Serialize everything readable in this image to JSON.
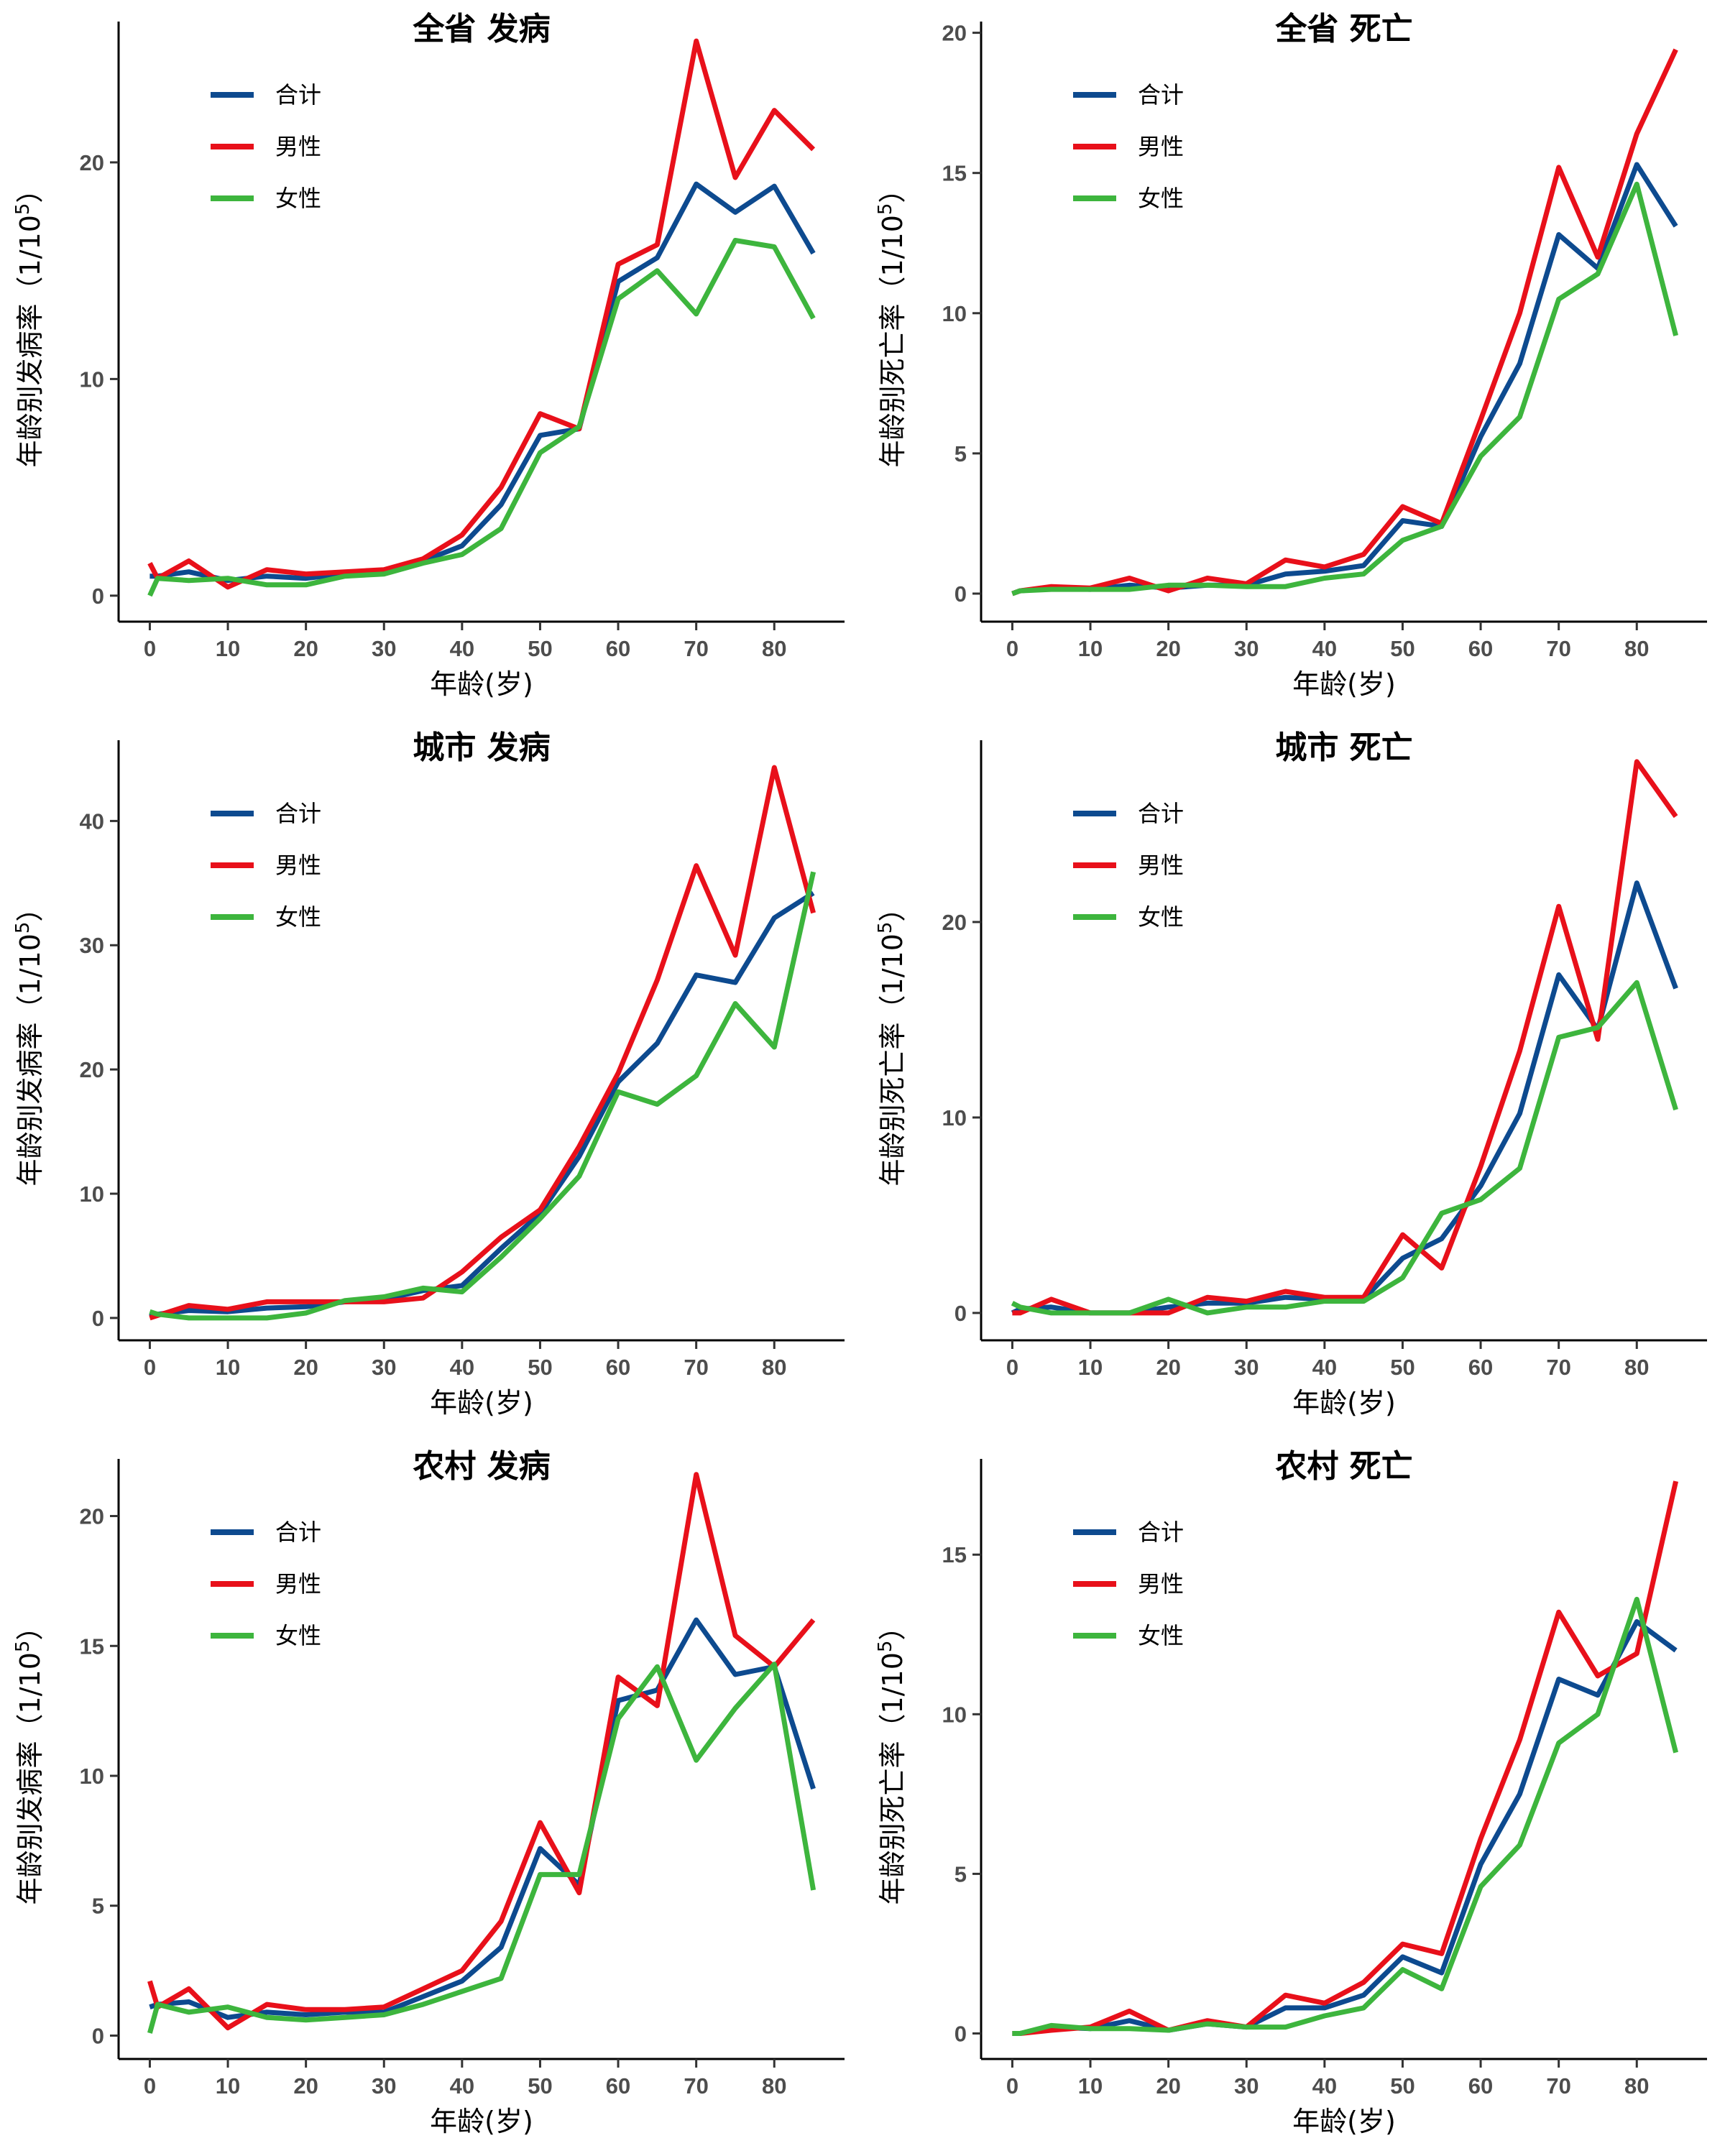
{
  "legend": [
    {
      "key": "total",
      "label": "合计",
      "color": "#0d4a8f"
    },
    {
      "key": "male",
      "label": "男性",
      "color": "#e8101a"
    },
    {
      "key": "female",
      "label": "女性",
      "color": "#3db53d"
    }
  ],
  "chart_data": [
    {
      "type": "line",
      "title": "全省 发病",
      "xlabel": "年龄(岁)",
      "ylabel": "年龄别发病率（1/10",
      "ylabel_sup": "5",
      "ylabel_close": "）",
      "xlim": [
        -4,
        89
      ],
      "ylim": [
        -1.2,
        26.5
      ],
      "xticks": [
        0,
        10,
        20,
        30,
        40,
        50,
        60,
        70,
        80
      ],
      "yticks": [
        0,
        10,
        20
      ],
      "x": [
        0,
        1,
        5,
        10,
        15,
        20,
        25,
        30,
        35,
        40,
        45,
        50,
        55,
        60,
        65,
        70,
        75,
        80,
        85
      ],
      "series": [
        {
          "name": "合计",
          "key": "total",
          "values": [
            0.9,
            0.9,
            1.1,
            0.7,
            0.9,
            0.8,
            1.0,
            1.1,
            1.6,
            2.3,
            4.2,
            7.4,
            7.7,
            14.5,
            15.6,
            19.0,
            17.7,
            18.9,
            15.8
          ]
        },
        {
          "name": "男性",
          "key": "male",
          "values": [
            1.5,
            0.8,
            1.6,
            0.4,
            1.2,
            1.0,
            1.1,
            1.2,
            1.7,
            2.8,
            5.0,
            8.4,
            7.7,
            15.3,
            16.2,
            25.6,
            19.3,
            22.4,
            20.6
          ]
        },
        {
          "name": "女性",
          "key": "female",
          "values": [
            0.0,
            0.8,
            0.7,
            0.8,
            0.5,
            0.5,
            0.9,
            1.0,
            1.5,
            1.9,
            3.1,
            6.6,
            7.8,
            13.7,
            15.0,
            13.0,
            16.4,
            16.1,
            12.8
          ]
        }
      ]
    },
    {
      "type": "line",
      "title": "全省 死亡",
      "xlabel": "年龄(岁)",
      "ylabel": "年龄别死亡率（1/10",
      "ylabel_sup": "5",
      "ylabel_close": "）",
      "xlim": [
        -4,
        89
      ],
      "ylim": [
        -1.0,
        20.4
      ],
      "xticks": [
        0,
        10,
        20,
        30,
        40,
        50,
        60,
        70,
        80
      ],
      "yticks": [
        0,
        5,
        10,
        15,
        20
      ],
      "x": [
        0,
        1,
        5,
        10,
        15,
        20,
        25,
        30,
        35,
        40,
        45,
        50,
        55,
        60,
        65,
        70,
        75,
        80,
        85
      ],
      "series": [
        {
          "name": "合计",
          "key": "total",
          "values": [
            0.0,
            0.1,
            0.2,
            0.15,
            0.3,
            0.2,
            0.3,
            0.3,
            0.7,
            0.8,
            1.0,
            2.6,
            2.4,
            5.6,
            8.2,
            12.8,
            11.6,
            15.3,
            13.1
          ]
        },
        {
          "name": "男性",
          "key": "male",
          "values": [
            0.0,
            0.1,
            0.25,
            0.2,
            0.55,
            0.1,
            0.55,
            0.35,
            1.2,
            0.95,
            1.4,
            3.1,
            2.5,
            6.2,
            10.0,
            15.2,
            12.0,
            16.4,
            19.4
          ]
        },
        {
          "name": "女性",
          "key": "female",
          "values": [
            0.0,
            0.1,
            0.15,
            0.15,
            0.15,
            0.3,
            0.3,
            0.25,
            0.25,
            0.55,
            0.7,
            1.9,
            2.4,
            4.9,
            6.3,
            10.5,
            11.4,
            14.6,
            9.2
          ]
        }
      ]
    },
    {
      "type": "line",
      "title": "城市 发病",
      "xlabel": "年龄(岁)",
      "ylabel": "年龄别发病率（1/10",
      "ylabel_sup": "5",
      "ylabel_close": "）",
      "xlim": [
        -4,
        89
      ],
      "ylim": [
        -1.8,
        46.5
      ],
      "xticks": [
        0,
        10,
        20,
        30,
        40,
        50,
        60,
        70,
        80
      ],
      "yticks": [
        0,
        10,
        20,
        30,
        40
      ],
      "x": [
        0,
        1,
        5,
        10,
        15,
        20,
        25,
        30,
        35,
        40,
        45,
        50,
        55,
        60,
        65,
        70,
        75,
        80,
        85
      ],
      "series": [
        {
          "name": "合计",
          "key": "total",
          "values": [
            0.1,
            0.3,
            0.6,
            0.5,
            0.8,
            0.9,
            1.3,
            1.5,
            2.2,
            2.6,
            5.6,
            8.4,
            13.0,
            19.0,
            22.1,
            27.6,
            27.0,
            32.2,
            34.2
          ]
        },
        {
          "name": "男性",
          "key": "male",
          "values": [
            0.0,
            0.2,
            1.0,
            0.7,
            1.3,
            1.3,
            1.3,
            1.3,
            1.6,
            3.7,
            6.5,
            8.7,
            13.8,
            19.7,
            27.2,
            36.4,
            29.2,
            44.3,
            32.6
          ]
        },
        {
          "name": "女性",
          "key": "female",
          "values": [
            0.5,
            0.3,
            0.0,
            0.0,
            0.0,
            0.4,
            1.4,
            1.7,
            2.4,
            2.1,
            4.9,
            8.0,
            11.4,
            18.2,
            17.2,
            19.5,
            25.3,
            21.8,
            35.9
          ]
        }
      ]
    },
    {
      "type": "line",
      "title": "城市 死亡",
      "xlabel": "年龄(岁)",
      "ylabel": "年龄别死亡率（1/10",
      "ylabel_sup": "5",
      "ylabel_close": "）",
      "xlim": [
        -4,
        89
      ],
      "ylim": [
        -1.4,
        29.3
      ],
      "xticks": [
        0,
        10,
        20,
        30,
        40,
        50,
        60,
        70,
        80
      ],
      "yticks": [
        0,
        10,
        20
      ],
      "x": [
        0,
        1,
        5,
        10,
        15,
        20,
        25,
        30,
        35,
        40,
        45,
        50,
        55,
        60,
        65,
        70,
        75,
        80,
        85
      ],
      "series": [
        {
          "name": "合计",
          "key": "total",
          "values": [
            0.0,
            0.2,
            0.3,
            0.0,
            0.0,
            0.3,
            0.5,
            0.5,
            0.8,
            0.7,
            0.7,
            2.8,
            3.8,
            6.5,
            10.2,
            17.3,
            14.5,
            22.0,
            16.6
          ]
        },
        {
          "name": "男性",
          "key": "male",
          "values": [
            0.0,
            0.0,
            0.7,
            0.0,
            0.0,
            0.0,
            0.8,
            0.6,
            1.1,
            0.8,
            0.8,
            4.0,
            2.3,
            7.5,
            13.4,
            20.8,
            14.0,
            28.2,
            25.4
          ]
        },
        {
          "name": "女性",
          "key": "female",
          "values": [
            0.5,
            0.3,
            0.0,
            0.0,
            0.0,
            0.7,
            0.0,
            0.3,
            0.3,
            0.6,
            0.6,
            1.8,
            5.1,
            5.8,
            7.4,
            14.1,
            14.6,
            16.9,
            10.4
          ]
        }
      ]
    },
    {
      "type": "line",
      "title": "农村 发病",
      "xlabel": "年龄(岁)",
      "ylabel": "年龄别发病率（1/10",
      "ylabel_sup": "5",
      "ylabel_close": "）",
      "xlim": [
        -4,
        89
      ],
      "ylim": [
        -0.9,
        22.2
      ],
      "xticks": [
        0,
        10,
        20,
        30,
        40,
        50,
        60,
        70,
        80
      ],
      "yticks": [
        0,
        5,
        10,
        15,
        20
      ],
      "x": [
        0,
        1,
        5,
        10,
        15,
        20,
        25,
        30,
        35,
        40,
        45,
        50,
        55,
        60,
        65,
        70,
        75,
        80,
        85
      ],
      "series": [
        {
          "name": "合计",
          "key": "total",
          "values": [
            1.1,
            1.2,
            1.3,
            0.7,
            0.9,
            0.8,
            0.9,
            0.9,
            1.5,
            2.1,
            3.4,
            7.2,
            5.8,
            12.9,
            13.3,
            16.0,
            13.9,
            14.2,
            9.5
          ]
        },
        {
          "name": "男性",
          "key": "male",
          "values": [
            2.1,
            1.1,
            1.8,
            0.3,
            1.2,
            1.0,
            1.0,
            1.1,
            1.8,
            2.5,
            4.4,
            8.2,
            5.5,
            13.8,
            12.7,
            21.6,
            15.4,
            14.2,
            16.0
          ]
        },
        {
          "name": "女性",
          "key": "female",
          "values": [
            0.1,
            1.2,
            0.9,
            1.1,
            0.7,
            0.6,
            0.7,
            0.8,
            1.2,
            1.7,
            2.2,
            6.2,
            6.2,
            12.2,
            14.2,
            10.6,
            12.6,
            14.3,
            5.6
          ]
        }
      ]
    },
    {
      "type": "line",
      "title": "农村 死亡",
      "xlabel": "年龄(岁)",
      "ylabel": "年龄别死亡率（1/10",
      "ylabel_sup": "5",
      "ylabel_close": "）",
      "xlim": [
        -4,
        89
      ],
      "ylim": [
        -0.8,
        18.0
      ],
      "xticks": [
        0,
        10,
        20,
        30,
        40,
        50,
        60,
        70,
        80
      ],
      "yticks": [
        0,
        5,
        10,
        15
      ],
      "x": [
        0,
        1,
        5,
        10,
        15,
        20,
        25,
        30,
        35,
        40,
        45,
        50,
        55,
        60,
        65,
        70,
        75,
        80,
        85
      ],
      "series": [
        {
          "name": "合计",
          "key": "total",
          "values": [
            0.0,
            0.0,
            0.2,
            0.15,
            0.4,
            0.1,
            0.3,
            0.2,
            0.8,
            0.8,
            1.2,
            2.4,
            1.9,
            5.3,
            7.5,
            11.1,
            10.6,
            12.9,
            12.0
          ]
        },
        {
          "name": "男性",
          "key": "male",
          "values": [
            0.0,
            0.0,
            0.1,
            0.2,
            0.7,
            0.1,
            0.4,
            0.2,
            1.2,
            0.95,
            1.6,
            2.8,
            2.5,
            6.1,
            9.2,
            13.2,
            11.2,
            11.9,
            17.3
          ]
        },
        {
          "name": "女性",
          "key": "female",
          "values": [
            0.0,
            0.0,
            0.25,
            0.15,
            0.15,
            0.1,
            0.3,
            0.2,
            0.2,
            0.55,
            0.8,
            2.0,
            1.4,
            4.6,
            5.9,
            9.1,
            10.0,
            13.6,
            8.8
          ]
        }
      ]
    }
  ]
}
